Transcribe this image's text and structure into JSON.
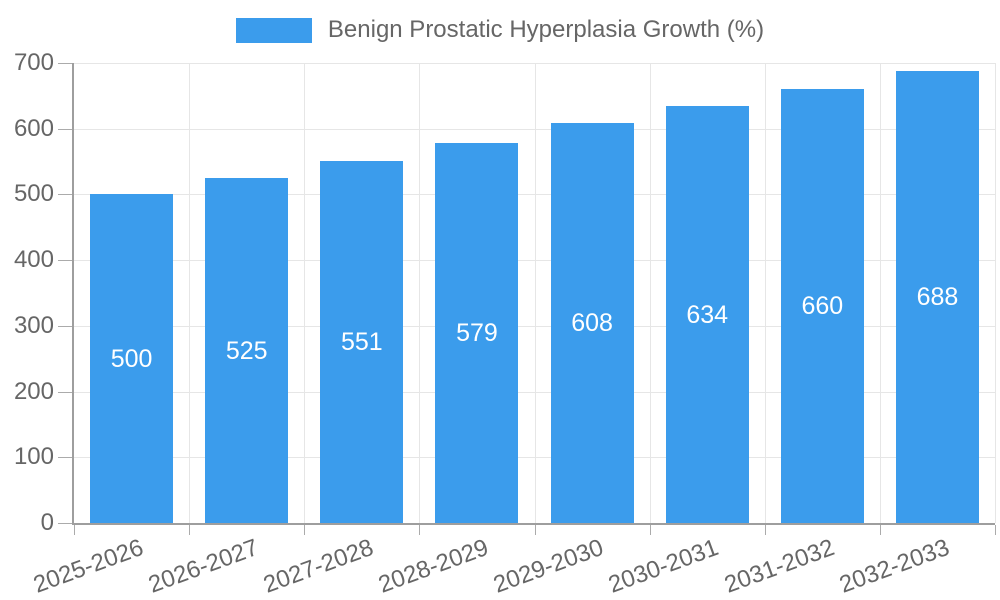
{
  "chart_data": {
    "type": "bar",
    "title": "Benign Prostatic Hyperplasia Growth (%)",
    "legend_position": "top",
    "categories": [
      "2025-2026",
      "2026-2027",
      "2027-2028",
      "2028-2029",
      "2029-2030",
      "2030-2031",
      "2031-2032",
      "2032-2033"
    ],
    "series": [
      {
        "name": "Benign Prostatic Hyperplasia Growth (%)",
        "values": [
          500,
          525,
          551,
          579,
          608,
          634,
          660,
          688
        ]
      }
    ],
    "bar_value_labels": [
      "500",
      "525",
      "551",
      "579",
      "608",
      "634",
      "660",
      "688"
    ],
    "xlabel": "",
    "ylabel": "",
    "ylim": [
      0,
      700
    ],
    "yticks": [
      0,
      100,
      200,
      300,
      400,
      500,
      600,
      700
    ],
    "grid": true,
    "x_tick_rotation_deg": -20,
    "colors": {
      "bar": "#3B9CEC",
      "bar_label": "#FFFFFF",
      "axis_text": "#666666",
      "grid_line": "#E6E6E6",
      "axis_line": "#9E9E9E",
      "tick_mark": "#ABABAB"
    }
  }
}
